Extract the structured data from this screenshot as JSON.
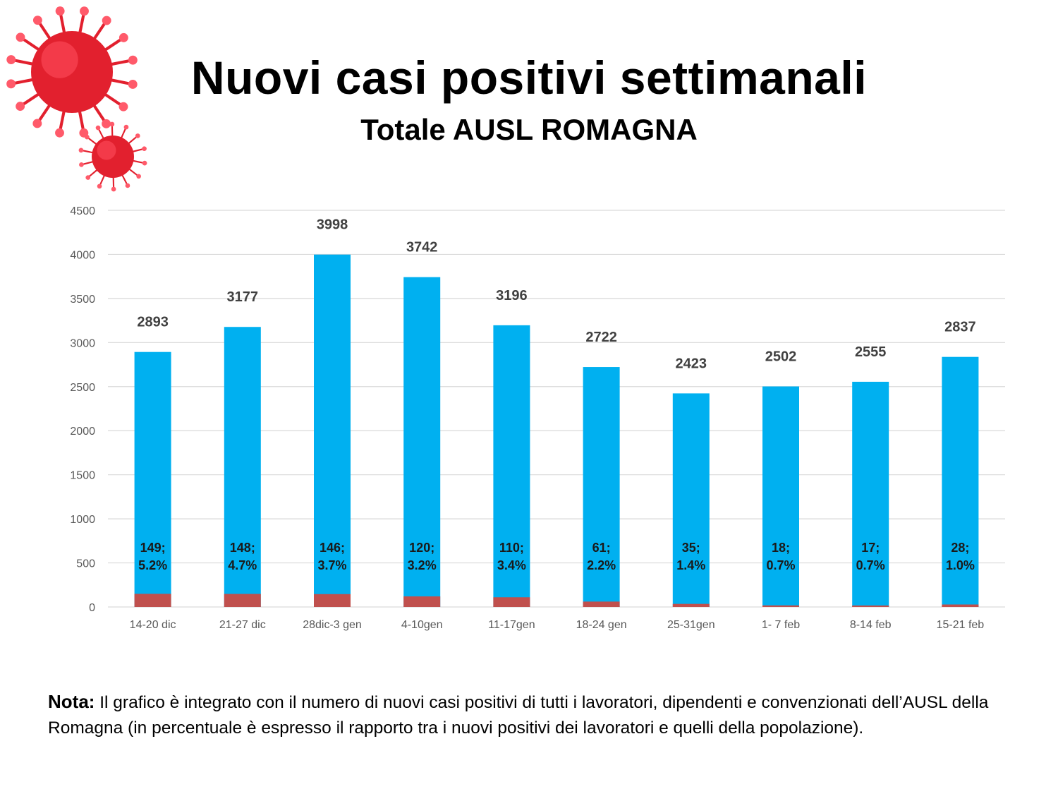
{
  "header": {
    "title": "Nuovi casi positivi settimanali",
    "subtitle": "Totale AUSL ROMAGNA"
  },
  "decoration": {
    "icon": "coronavirus-icon",
    "color": "#e2202e"
  },
  "colors": {
    "total_bar": "#00b0f0",
    "worker_bar": "#c0504d",
    "grid": "#d9d9d9"
  },
  "chart_data": {
    "type": "bar",
    "stacking": "overlap",
    "categories": [
      "14-20 dic",
      "21-27 dic",
      "28dic-3 gen",
      "4-10gen",
      "11-17gen",
      "18-24 gen",
      "25-31gen",
      "1- 7 feb",
      "8-14 feb",
      "15-21 feb"
    ],
    "series": [
      {
        "values": [
          2893,
          3177,
          3998,
          3742,
          3196,
          2722,
          2423,
          2502,
          2555,
          2837
        ]
      },
      {
        "values": [
          149,
          148,
          146,
          120,
          110,
          61,
          35,
          18,
          17,
          28
        ]
      }
    ],
    "worker_labels": [
      [
        "149;",
        "5.2%"
      ],
      [
        "148;",
        "4.7%"
      ],
      [
        "146;",
        "3.7%"
      ],
      [
        "120;",
        "3.2%"
      ],
      [
        "110;",
        "3.4%"
      ],
      [
        "61;",
        "2.2%"
      ],
      [
        "35;",
        "1.4%"
      ],
      [
        "18;",
        "0.7%"
      ],
      [
        "17;",
        "0.7%"
      ],
      [
        "28;",
        "1.0%"
      ]
    ],
    "yticks": [
      "0",
      "500",
      "1000",
      "1500",
      "2000",
      "2500",
      "3000",
      "3500",
      "4000",
      "4500"
    ],
    "ylim": [
      0,
      4500
    ],
    "grid": true,
    "legend": "none"
  },
  "note": {
    "label": "Nota:",
    "text": " Il grafico è integrato con il numero di nuovi casi positivi di tutti i lavoratori, dipendenti e convenzionati dell’AUSL della Romagna (in percentuale è espresso il rapporto tra i nuovi positivi dei lavoratori e quelli della popolazione)."
  }
}
